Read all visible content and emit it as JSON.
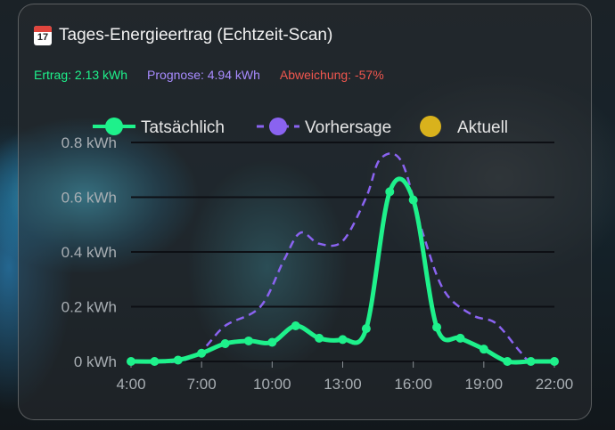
{
  "card": {
    "title": "Tages-Energieertrag (Echtzeit-Scan)",
    "title_icon": "calendar-icon",
    "calendar_day": "17"
  },
  "stats": {
    "ertrag": "Ertrag: 2.13 kWh",
    "prognose": "Prognose: 4.94 kWh",
    "abweichung": "Abweichung: -57%"
  },
  "colors": {
    "actual": "#1ef18b",
    "forecast": "#8a63f0",
    "current": "#d9b21c",
    "grid": "#0d0f14",
    "ertrag": "#1ef18b",
    "prognose": "#a88bff",
    "abweichung": "#f0564e"
  },
  "chart_data": {
    "type": "line",
    "legend_position": "top",
    "legend": [
      "Tatsächlich",
      "Vorhersage",
      "Aktuell"
    ],
    "y_tick_labels": [
      "0 kWh",
      "0.2 kWh",
      "0.4 kWh",
      "0.6 kWh",
      "0.8 kWh"
    ],
    "y_ticks": [
      0,
      0.2,
      0.4,
      0.6,
      0.8
    ],
    "x_tick_labels": [
      "4:00",
      "7:00",
      "10:00",
      "13:00",
      "16:00",
      "19:00",
      "22:00"
    ],
    "x_ticks": [
      4,
      7,
      10,
      13,
      16,
      19,
      22
    ],
    "ylim": [
      0,
      0.8
    ],
    "xlim": [
      4,
      22
    ],
    "grid": true,
    "series": [
      {
        "name": "Tatsächlich",
        "style": "solid",
        "markers": true,
        "x": [
          4,
          5,
          6,
          7,
          8,
          9,
          10,
          11,
          12,
          13,
          14,
          15,
          16,
          17,
          18,
          19,
          20,
          21,
          22
        ],
        "y": [
          0.0,
          0.0,
          0.005,
          0.03,
          0.065,
          0.075,
          0.07,
          0.13,
          0.085,
          0.08,
          0.12,
          0.62,
          0.59,
          0.125,
          0.085,
          0.045,
          0.0,
          0.0,
          0.0
        ]
      },
      {
        "name": "Vorhersage",
        "style": "dashed",
        "x": [
          4,
          6,
          7,
          8,
          9.5,
          10.5,
          11.2,
          12,
          13,
          14,
          14.6,
          15.5,
          16.4,
          17.3,
          18.5,
          19.5,
          20.5,
          21,
          22
        ],
        "y": [
          0.0,
          0.0,
          0.04,
          0.13,
          0.2,
          0.37,
          0.47,
          0.43,
          0.44,
          0.6,
          0.74,
          0.73,
          0.47,
          0.26,
          0.17,
          0.14,
          0.04,
          0.0,
          0.0
        ]
      },
      {
        "name": "Aktuell",
        "style": "point",
        "x": [],
        "y": []
      }
    ]
  }
}
